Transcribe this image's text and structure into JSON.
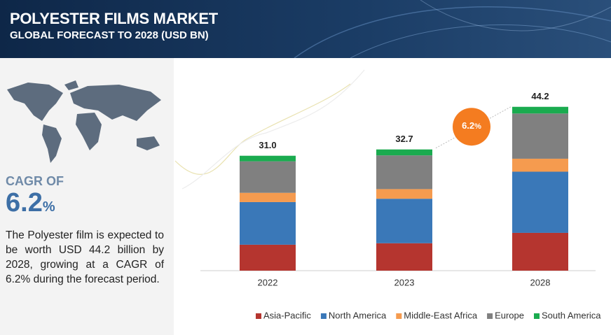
{
  "header": {
    "title": "POLYESTER FILMS MARKET",
    "subtitle": "GLOBAL FORECAST TO 2028 (USD BN)"
  },
  "sidebar": {
    "cagr_label": "CAGR OF",
    "cagr_value": 6.2,
    "cagr_unit": "%",
    "description": "The  Polyester film is expected to be worth USD 44.2 billion by 2028, growing at a CAGR of 6.2% during the forecast period."
  },
  "chart_data": {
    "type": "stacked_bar",
    "categories": [
      "2022",
      "2023",
      "2028"
    ],
    "series": [
      {
        "name": "Asia-Pacific",
        "color": "#b5352f",
        "values": [
          7.0,
          7.4,
          10.2
        ]
      },
      {
        "name": "North America",
        "color": "#3a78b8",
        "values": [
          11.5,
          12.0,
          16.5
        ]
      },
      {
        "name": "Middle-East Africa",
        "color": "#f59b4f",
        "values": [
          2.5,
          2.6,
          3.5
        ]
      },
      {
        "name": "Europe",
        "color": "#808080",
        "values": [
          8.5,
          9.1,
          12.2
        ]
      },
      {
        "name": "South America",
        "color": "#1aab4f",
        "values": [
          1.5,
          1.6,
          1.8
        ]
      }
    ],
    "totals": {
      "values": [
        31,
        32.7,
        44.2
      ],
      "value_labels": [
        "31.0",
        "32.7",
        "44.2"
      ]
    },
    "badge": {
      "value": 6.2,
      "unit": "%",
      "color": "#f47c20"
    },
    "legend": "bottom"
  }
}
